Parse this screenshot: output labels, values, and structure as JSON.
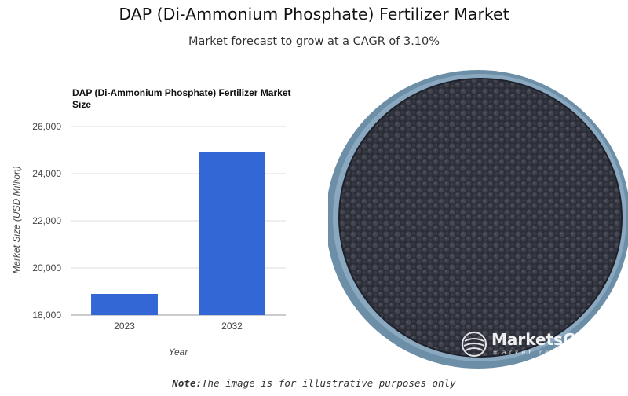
{
  "header": {
    "title": "DAP (Di-Ammonium Phosphate) Fertilizer Market",
    "subtitle": "Market forecast to grow at a CAGR of 3.10%"
  },
  "chart_data": {
    "type": "bar",
    "title": "DAP (Di-Ammonium Phosphate) Fertilizer Market Size",
    "categories": [
      "2023",
      "2032"
    ],
    "values": [
      18900,
      24900
    ],
    "xlabel": "Year",
    "ylabel": "Market Size (USD Million)",
    "ylim": [
      18000,
      26000
    ],
    "yticks": [
      18000,
      20000,
      22000,
      24000,
      26000
    ],
    "ytick_labels": [
      "18,000",
      "20,000",
      "22,000",
      "24,000",
      "26,000"
    ],
    "grid": true,
    "legend": "none",
    "bar_color": "#3367d6"
  },
  "image": {
    "subject": "pile of dark DAP fertilizer granules in a bowl",
    "watermark_main": "MarketsGl",
    "watermark_sub": "market re"
  },
  "footnote": {
    "label": "Note:",
    "text": "The image is for illustrative purposes only"
  }
}
